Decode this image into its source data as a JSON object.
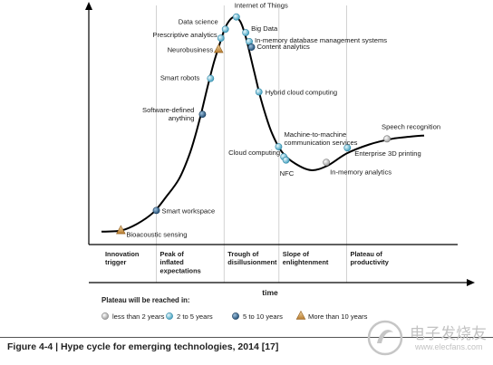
{
  "chart_data": {
    "type": "line",
    "x": [
      0,
      0.06,
      0.11,
      0.16,
      0.2,
      0.24,
      0.27,
      0.29,
      0.31,
      0.33,
      0.35,
      0.37,
      0.38,
      0.39,
      0.4,
      0.41,
      0.42,
      0.43,
      0.44,
      0.45,
      0.46,
      0.475,
      0.49,
      0.51,
      0.53,
      0.56,
      0.6,
      0.65,
      0.7,
      0.76,
      0.83,
      0.9,
      0.96,
      1.0
    ],
    "y": [
      0.025,
      0.03,
      0.06,
      0.11,
      0.18,
      0.26,
      0.36,
      0.45,
      0.56,
      0.68,
      0.79,
      0.88,
      0.925,
      0.955,
      0.975,
      0.985,
      0.982,
      0.965,
      0.93,
      0.88,
      0.82,
      0.73,
      0.64,
      0.54,
      0.46,
      0.38,
      0.33,
      0.3,
      0.32,
      0.375,
      0.415,
      0.44,
      0.45,
      0.455
    ],
    "points": [
      {
        "label": "Internet of Things",
        "x": 0.418,
        "y": 0.985,
        "category": 1
      },
      {
        "label": "Data science",
        "x": 0.384,
        "y": 0.93,
        "category": 1
      },
      {
        "label": "Prescriptive analytics",
        "x": 0.37,
        "y": 0.89,
        "category": 1
      },
      {
        "label": "Neurobusiness",
        "x": 0.363,
        "y": 0.84,
        "category": 3
      },
      {
        "label": "Smart robots",
        "x": 0.338,
        "y": 0.71,
        "category": 1
      },
      {
        "label": "Software-defined anything",
        "x": 0.313,
        "y": 0.55,
        "category": 2
      },
      {
        "label": "Smart workspace",
        "x": 0.17,
        "y": 0.12,
        "category": 2
      },
      {
        "label": "Bioacoustic sensing",
        "x": 0.06,
        "y": 0.03,
        "category": 3
      },
      {
        "label": "Big Data",
        "x": 0.447,
        "y": 0.915,
        "category": 1
      },
      {
        "label": "In-memory database management systems",
        "x": 0.458,
        "y": 0.875,
        "category": 1
      },
      {
        "label": "Content analytics",
        "x": 0.465,
        "y": 0.85,
        "category": 2
      },
      {
        "label": "Hybrid cloud computing",
        "x": 0.488,
        "y": 0.65,
        "category": 1
      },
      {
        "label": "Machine-to-machine communication services",
        "x": 0.549,
        "y": 0.405,
        "category": 1
      },
      {
        "label": "Cloud computing",
        "x": 0.565,
        "y": 0.36,
        "category": 1
      },
      {
        "label": "NFC",
        "x": 0.572,
        "y": 0.345,
        "category": 1
      },
      {
        "label": "In-memory analytics",
        "x": 0.697,
        "y": 0.335,
        "category": 0
      },
      {
        "label": "Enterprise 3D printing",
        "x": 0.762,
        "y": 0.4,
        "category": 1
      },
      {
        "label": "Speech recognition",
        "x": 0.885,
        "y": 0.44,
        "category": 0
      }
    ],
    "phases": [
      {
        "label_lines": [
          "Innovation",
          "trigger"
        ]
      },
      {
        "label_lines": [
          "Peak of",
          "inflated",
          "expectations"
        ]
      },
      {
        "label_lines": [
          "Trough of",
          "disillusionment"
        ]
      },
      {
        "label_lines": [
          "Slope of",
          "enlightenment"
        ]
      },
      {
        "label_lines": [
          "Plateau of",
          "productivity"
        ]
      }
    ],
    "phase_bounds": [
      0,
      0.17,
      0.38,
      0.55,
      0.76,
      1.0
    ],
    "xlabel": "time",
    "legend": {
      "title": "Plateau will be reached in:",
      "entries": [
        {
          "label": "less than 2 years",
          "shape": "circle",
          "color": "#c9c9c9"
        },
        {
          "label": "2 to 5 years",
          "shape": "circle",
          "color": "#8fd0e2"
        },
        {
          "label": "5 to 10 years",
          "shape": "circle",
          "color": "#2f6fa0"
        },
        {
          "label": "More than 10 years",
          "shape": "triangle",
          "color": "#d29a48"
        }
      ]
    },
    "grid": true
  },
  "caption": "Figure 4-4 | Hype cycle for emerging technologies, 2014 [17]",
  "watermark": {
    "cn_text": "电子发烧友",
    "en_text": "www.elecfans.com"
  }
}
